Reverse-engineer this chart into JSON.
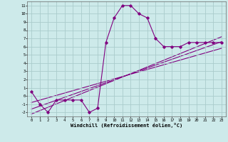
{
  "main_x": [
    0,
    1,
    2,
    3,
    4,
    5,
    6,
    7,
    8,
    9,
    10,
    11,
    12,
    13,
    14,
    15,
    16,
    17,
    18,
    19,
    20,
    21,
    22,
    23
  ],
  "main_y": [
    0.5,
    -1,
    -2,
    -0.5,
    -0.5,
    -0.5,
    -0.5,
    -2,
    -1.5,
    6.5,
    9.5,
    11,
    11,
    10,
    9.5,
    7,
    6,
    6,
    6,
    6.5,
    6.5,
    6.5,
    6.5,
    6.5
  ],
  "line1_x": [
    0,
    23
  ],
  "line1_y": [
    -2.2,
    7.2
  ],
  "line2_x": [
    0,
    23
  ],
  "line2_y": [
    -1.6,
    6.6
  ],
  "line3_x": [
    0,
    23
  ],
  "line3_y": [
    -0.8,
    5.8
  ],
  "color": "#800080",
  "bg_color": "#cdeaea",
  "grid_color": "#aacccc",
  "xlabel": "Windchill (Refroidissement éolien,°C)",
  "xlim": [
    -0.5,
    23.5
  ],
  "ylim": [
    -2.5,
    11.5
  ],
  "yticks": [
    -2,
    -1,
    0,
    1,
    2,
    3,
    4,
    5,
    6,
    7,
    8,
    9,
    10,
    11
  ],
  "xticks": [
    0,
    1,
    2,
    3,
    4,
    5,
    6,
    7,
    8,
    9,
    10,
    11,
    12,
    13,
    14,
    15,
    16,
    17,
    18,
    19,
    20,
    21,
    22,
    23
  ]
}
